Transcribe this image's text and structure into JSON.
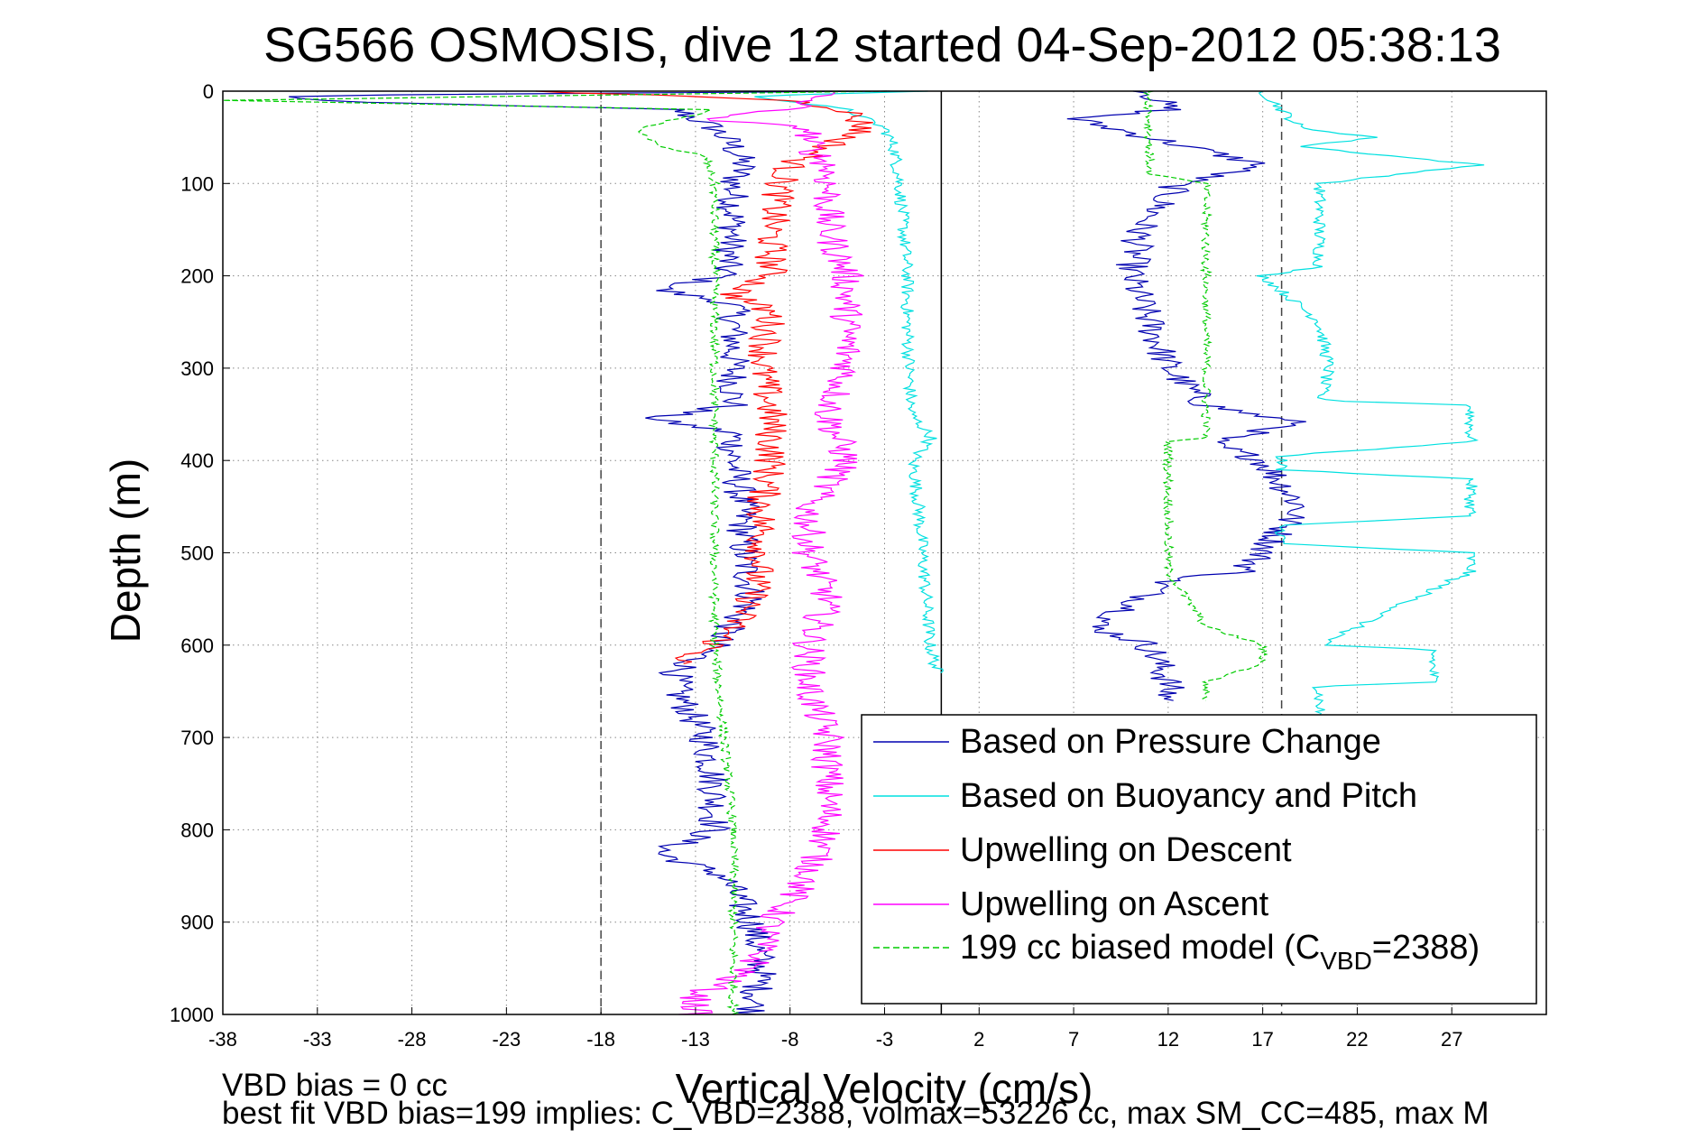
{
  "chart_data": {
    "type": "line",
    "title": "SG566 OSMOSIS, dive 12 started 04-Sep-2012 05:38:13",
    "xlabel": "Vertical Velocity (cm/s)",
    "ylabel": "Depth (m)",
    "xlim": [
      -38,
      32
    ],
    "ylim": [
      1000,
      0
    ],
    "y_reversed": true,
    "grid": true,
    "x_ticks": [
      -38,
      -33,
      -28,
      -23,
      -18,
      -13,
      -8,
      -3,
      2,
      7,
      12,
      17,
      22,
      27
    ],
    "y_ticks": [
      0,
      100,
      200,
      300,
      400,
      500,
      600,
      700,
      800,
      900,
      1000
    ],
    "reference_lines_x": [
      -18,
      0,
      18
    ],
    "legend_position": "bottom-right",
    "legend": [
      {
        "label": "Based on Pressure Change",
        "color": "#0000b0",
        "style": "solid"
      },
      {
        "label": "Based on Buoyancy and Pitch",
        "color": "#00e0e0",
        "style": "solid"
      },
      {
        "label": "Upwelling on Descent",
        "color": "#ff0000",
        "style": "solid"
      },
      {
        "label": "Upwelling on Ascent",
        "color": "#ff00ff",
        "style": "solid"
      },
      {
        "label_main": "199 cc biased model (C",
        "label_sub": "VBD",
        "label_tail": "=2388)",
        "color": "#00cc00",
        "style": "dashed"
      }
    ],
    "series": [
      {
        "name": "Based on Pressure Change",
        "segment": "descent",
        "color": "#0000b0",
        "depth": [
          0,
          5,
          10,
          15,
          20,
          40,
          60,
          80,
          100,
          150,
          200,
          215,
          230,
          260,
          300,
          340,
          355,
          370,
          400,
          450,
          500,
          550,
          600,
          630,
          650,
          700,
          750,
          800,
          825,
          850,
          900,
          950,
          1000
        ],
        "values": [
          -3,
          -36,
          -33,
          -25,
          -14,
          -12,
          -11,
          -10.5,
          -11,
          -11,
          -11.5,
          -15,
          -11,
          -11,
          -11,
          -11,
          -15.5,
          -11,
          -11,
          -10.5,
          -10.5,
          -10,
          -12,
          -14,
          -14,
          -12.5,
          -12,
          -12,
          -15,
          -11.5,
          -10,
          -9.5,
          -10
        ]
      },
      {
        "name": "Based on Pressure Change",
        "segment": "ascent",
        "color": "#0000b0",
        "depth": [
          0,
          20,
          30,
          50,
          80,
          100,
          150,
          200,
          250,
          300,
          340,
          360,
          380,
          400,
          450,
          500,
          520,
          530,
          560,
          580,
          600,
          640,
          650,
          660
        ],
        "values": [
          11,
          12,
          7,
          11,
          17,
          12.5,
          10.5,
          10,
          11,
          12,
          14,
          19,
          14,
          17,
          19,
          17,
          16,
          12,
          10,
          8,
          11,
          12,
          12,
          12
        ]
      },
      {
        "name": "Based on Buoyancy and Pitch",
        "segment": "descent",
        "color": "#00e0e0",
        "depth": [
          0,
          5,
          20,
          40,
          60,
          100,
          150,
          200,
          250,
          300,
          350,
          375,
          400,
          450,
          500,
          550,
          600,
          630
        ],
        "values": [
          -0.5,
          -10,
          -5,
          -3,
          -2.5,
          -2.2,
          -2,
          -1.8,
          -1.8,
          -1.7,
          -1.6,
          -0.5,
          -1.5,
          -1.2,
          -1,
          -0.8,
          -0.6,
          -0.2
        ]
      },
      {
        "name": "Based on Buoyancy and Pitch",
        "segment": "ascent",
        "color": "#00e0e0",
        "depth": [
          0,
          40,
          50,
          60,
          80,
          100,
          150,
          190,
          200,
          250,
          300,
          335,
          340,
          380,
          395,
          400,
          410,
          420,
          460,
          470,
          480,
          490,
          500,
          520,
          600,
          605,
          640,
          645,
          700,
          760
        ],
        "values": [
          17,
          19,
          23,
          19,
          28.5,
          20,
          20,
          20,
          17,
          20,
          20.5,
          20,
          28,
          28,
          18,
          18,
          18,
          28,
          28,
          18,
          18,
          18,
          28,
          28,
          20,
          26,
          26,
          20,
          20,
          20
        ]
      },
      {
        "name": "Upwelling on Descent",
        "color": "#ff0000",
        "depth": [
          0,
          5,
          10,
          20,
          40,
          60,
          80,
          100,
          150,
          200,
          220,
          240,
          300,
          350,
          400,
          450,
          500,
          550,
          580,
          600,
          620
        ],
        "values": [
          -22,
          -14,
          -8,
          -5,
          -4,
          -6,
          -8,
          -8.5,
          -9,
          -9,
          -11,
          -9,
          -9.5,
          -9,
          -9,
          -9.5,
          -9.5,
          -10,
          -11,
          -12,
          -14
        ]
      },
      {
        "name": "Upwelling on Ascent",
        "color": "#ff00ff",
        "depth": [
          0,
          20,
          30,
          40,
          60,
          80,
          100,
          150,
          200,
          250,
          300,
          350,
          400,
          450,
          500,
          550,
          600,
          650,
          700,
          750,
          800,
          850,
          900,
          950,
          980,
          1000
        ],
        "values": [
          -6,
          -8,
          -13,
          -7,
          -7,
          -6,
          -6,
          -6,
          -5,
          -5,
          -5,
          -6,
          -5,
          -7,
          -7,
          -6,
          -7,
          -7,
          -6,
          -6,
          -6,
          -7,
          -9,
          -10,
          -13,
          -13
        ]
      },
      {
        "name": "199 cc biased model (CVBD=2388)",
        "segment": "descent",
        "color": "#00cc00",
        "depth": [
          0,
          10,
          20,
          40,
          60,
          70,
          100,
          200,
          300,
          400,
          500,
          520,
          600,
          700,
          800,
          900,
          950,
          1000
        ],
        "values": [
          -3,
          -38,
          -12,
          -16,
          -15,
          -12.5,
          -12,
          -12,
          -12,
          -12,
          -12,
          -12,
          -12,
          -11.5,
          -11,
          -11,
          -11,
          -11
        ]
      },
      {
        "name": "199 cc biased model (CVBD=2388)",
        "segment": "ascent",
        "color": "#00cc00",
        "depth": [
          0,
          90,
          100,
          150,
          200,
          300,
          350,
          375,
          380,
          450,
          460,
          500,
          520,
          580,
          600,
          620,
          640,
          660
        ],
        "values": [
          11,
          11,
          14,
          14,
          14,
          14,
          14,
          14,
          12,
          12,
          12,
          12,
          12,
          14,
          17,
          17,
          14,
          14
        ]
      }
    ]
  },
  "footnote": {
    "line1": "VBD bias = 0 cc",
    "line2": "best fit VBD bias=199 implies: C_VBD=2388, volmax=53226 cc, max SM_CC=485, max M"
  }
}
